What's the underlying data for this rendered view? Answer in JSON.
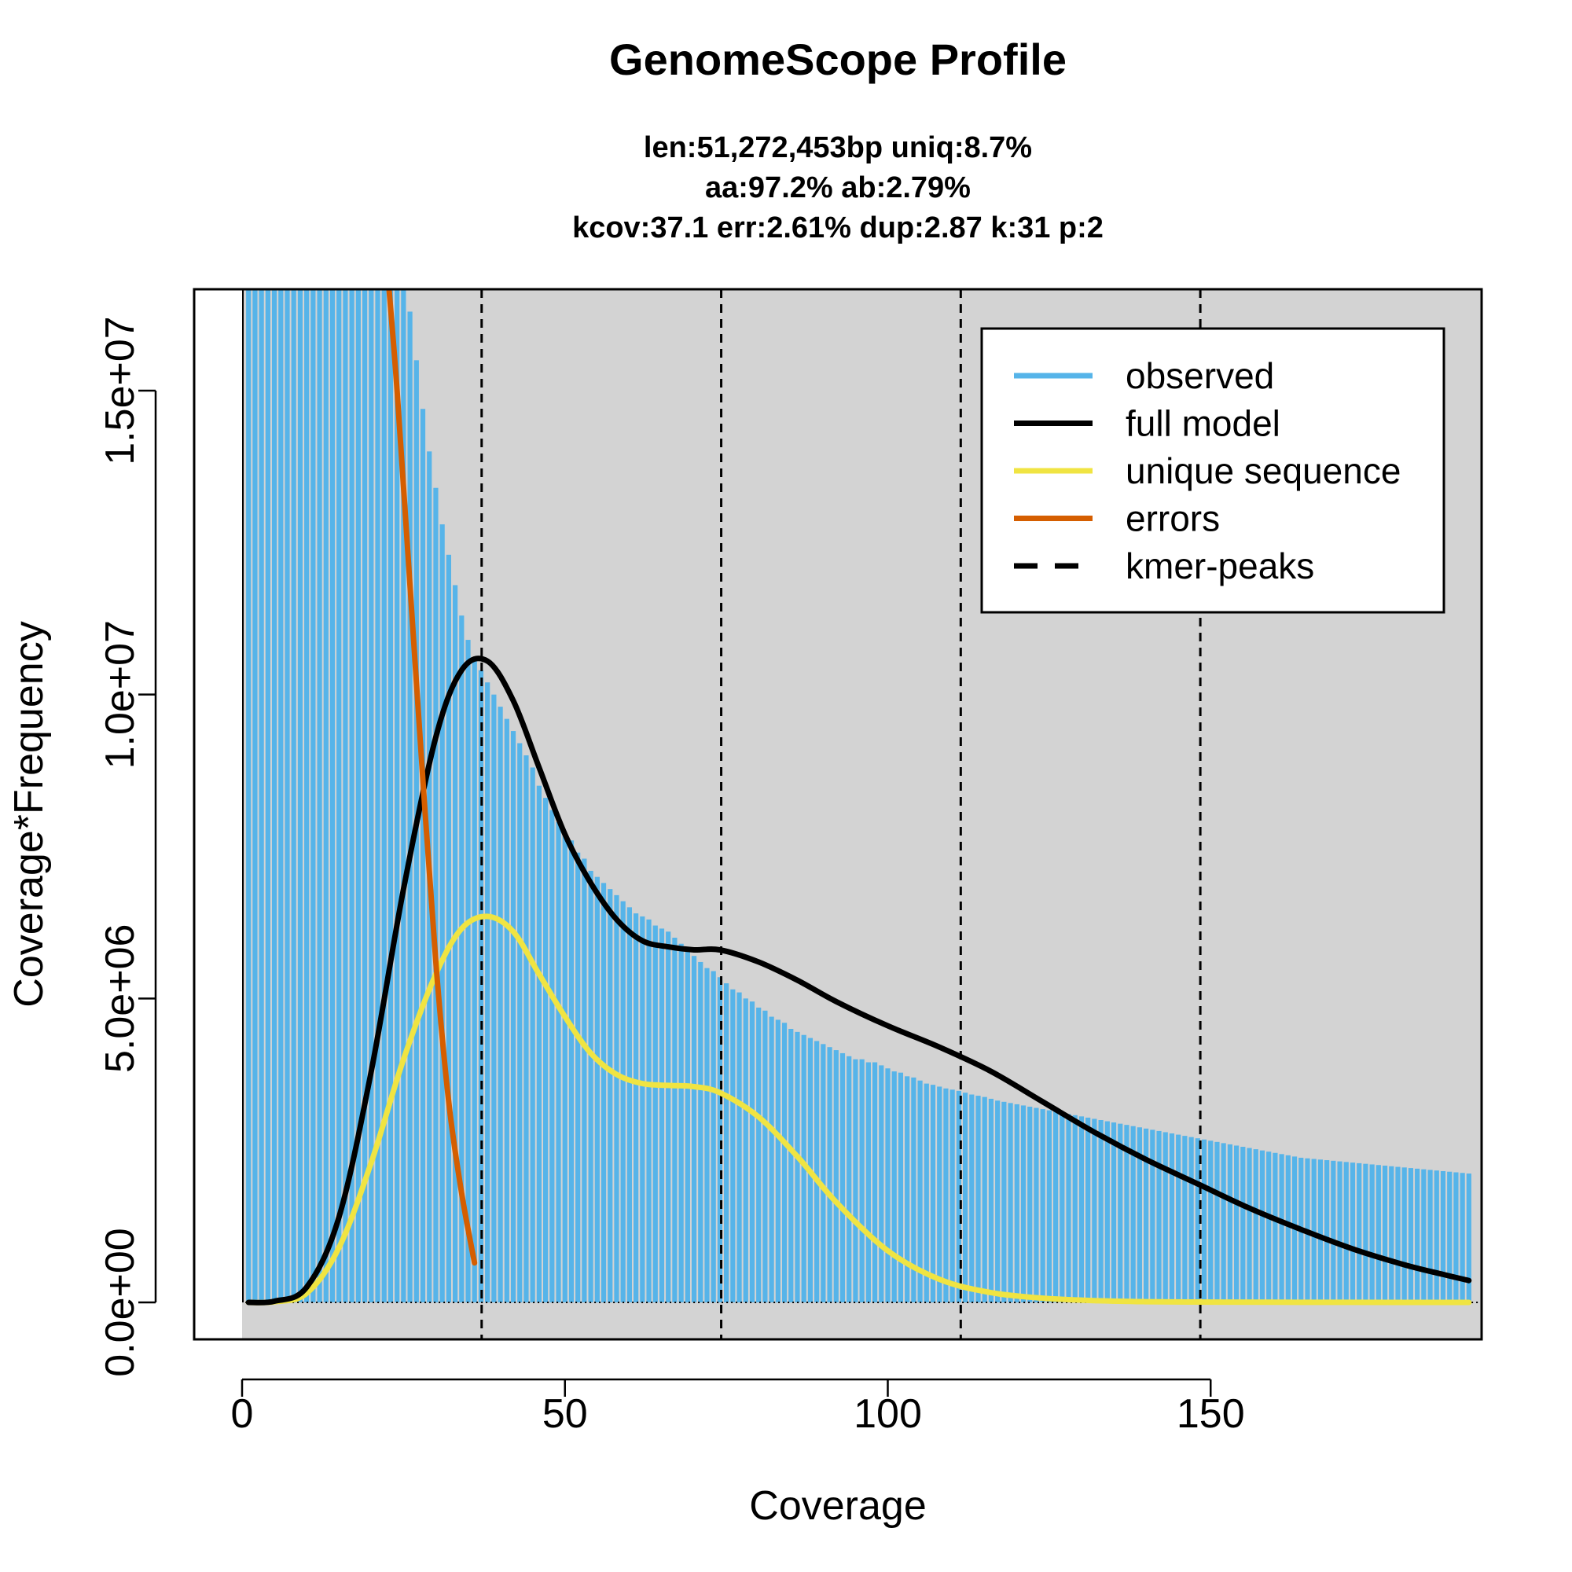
{
  "chart_data": {
    "type": "bar",
    "title": "GenomeScope Profile",
    "subtitle_lines": [
      "len:51,272,453bp uniq:8.7%",
      "aa:97.2% ab:2.79%",
      "kcov:37.1 err:2.61%  dup:2.87  k:31 p:2"
    ],
    "xlabel": "Coverage",
    "ylabel": "Coverage*Frequency",
    "xlim": [
      0,
      190
    ],
    "ylim": [
      0,
      17000000
    ],
    "x_ticks": [
      0,
      50,
      100,
      150
    ],
    "x_tick_labels": [
      "0",
      "50",
      "100",
      "150"
    ],
    "y_ticks": [
      0,
      5000000,
      10000000,
      15000000
    ],
    "y_tick_labels": [
      "0.0e+00",
      "5.0e+06",
      "1.0e+07",
      "1.5e+07"
    ],
    "background_color": "#d3d3d3",
    "legend_position": "top-right",
    "kmer_peaks": [
      37.1,
      74.2,
      111.3,
      148.4
    ],
    "observed": {
      "name": "observed",
      "color": "#56b4e9",
      "x": [
        1,
        2,
        3,
        4,
        5,
        6,
        7,
        8,
        9,
        10,
        11,
        12,
        13,
        14,
        15,
        16,
        17,
        18,
        19,
        20,
        21,
        22,
        23,
        24,
        25,
        26,
        27,
        28,
        29,
        30,
        31,
        32,
        33,
        34,
        35,
        36,
        37,
        38,
        39,
        40,
        41,
        42,
        43,
        44,
        45,
        46,
        47,
        48,
        49,
        50,
        51,
        52,
        53,
        54,
        55,
        56,
        57,
        58,
        59,
        60,
        61,
        62,
        63,
        64,
        65,
        66,
        67,
        68,
        69,
        70,
        71,
        72,
        73,
        74,
        75,
        76,
        77,
        78,
        79,
        80,
        81,
        82,
        83,
        84,
        85,
        86,
        87,
        88,
        89,
        90,
        91,
        92,
        93,
        94,
        95,
        96,
        97,
        98,
        99,
        100,
        101,
        102,
        103,
        104,
        105,
        106,
        107,
        108,
        109,
        110,
        111,
        112,
        113,
        114,
        115,
        116,
        117,
        118,
        119,
        120,
        121,
        122,
        123,
        124,
        125,
        126,
        127,
        128,
        129,
        130,
        131,
        132,
        133,
        134,
        135,
        136,
        137,
        138,
        139,
        140,
        141,
        142,
        143,
        144,
        145,
        146,
        147,
        148,
        149,
        150,
        151,
        152,
        153,
        154,
        155,
        156,
        157,
        158,
        159,
        160,
        161,
        162,
        163,
        164,
        165,
        166,
        167,
        168,
        169,
        170,
        171,
        172,
        173,
        174,
        175,
        176,
        177,
        178,
        179,
        180,
        181,
        182,
        183,
        184,
        185,
        186,
        187,
        188,
        189,
        190
      ],
      "values": [
        17000000,
        17000000,
        17000000,
        17000000,
        17000000,
        17000000,
        17000000,
        17000000,
        17000000,
        17000000,
        17000000,
        17000000,
        17000000,
        17000000,
        17000000,
        17000000,
        17000000,
        17000000,
        17000000,
        17000000,
        17000000,
        17000000,
        17000000,
        17000000,
        17000000,
        16300000,
        15500000,
        14700000,
        14000000,
        13400000,
        12800000,
        12300000,
        11800000,
        11300000,
        10900000,
        10600000,
        10400000,
        10200000,
        10000000,
        9800000,
        9600000,
        9400000,
        9200000,
        9000000,
        8800000,
        8500000,
        8300000,
        8100000,
        7900000,
        7700000,
        7600000,
        7400000,
        7300000,
        7100000,
        7000000,
        6900000,
        6800000,
        6700000,
        6600000,
        6500000,
        6400000,
        6350000,
        6300000,
        6200000,
        6150000,
        6100000,
        6000000,
        5900000,
        5800000,
        5700000,
        5600000,
        5500000,
        5450000,
        5350000,
        5250000,
        5150000,
        5100000,
        5000000,
        4950000,
        4850000,
        4800000,
        4700000,
        4650000,
        4600000,
        4500000,
        4450000,
        4400000,
        4350000,
        4300000,
        4250000,
        4200000,
        4150000,
        4100000,
        4050000,
        4000000,
        4000000,
        3950000,
        3950000,
        3900000,
        3850000,
        3800000,
        3780000,
        3720000,
        3700000,
        3650000,
        3600000,
        3580000,
        3550000,
        3520000,
        3500000,
        3480000,
        3450000,
        3420000,
        3400000,
        3380000,
        3350000,
        3320000,
        3300000,
        3280000,
        3260000,
        3240000,
        3220000,
        3200000,
        3180000,
        3160000,
        3140000,
        3120000,
        3100000,
        3080000,
        3060000,
        3040000,
        3020000,
        3000000,
        2980000,
        2960000,
        2940000,
        2920000,
        2900000,
        2880000,
        2860000,
        2840000,
        2820000,
        2800000,
        2780000,
        2760000,
        2740000,
        2720000,
        2700000,
        2680000,
        2660000,
        2640000,
        2620000,
        2600000,
        2580000,
        2560000,
        2540000,
        2520000,
        2500000,
        2480000,
        2460000,
        2440000,
        2420000,
        2400000,
        2380000,
        2370000,
        2360000,
        2350000,
        2340000,
        2330000,
        2320000,
        2310000,
        2300000,
        2290000,
        2280000,
        2270000,
        2260000,
        2250000,
        2240000,
        2230000,
        2220000,
        2210000,
        2200000,
        2190000,
        2180000,
        2170000,
        2160000,
        2150000,
        2140000,
        2130000,
        2120000
      ]
    },
    "series": [
      {
        "name": "full model",
        "color": "#000000",
        "x": [
          1,
          5,
          10,
          15,
          20,
          25,
          30,
          34,
          38,
          42,
          46,
          50,
          54,
          58,
          62,
          66,
          70,
          74,
          80,
          86,
          92,
          100,
          108,
          116,
          124,
          132,
          140,
          148,
          156,
          164,
          172,
          180,
          186,
          190
        ],
        "values": [
          0,
          20000,
          250000,
          1400000,
          3800000,
          6800000,
          9300000,
          10400000,
          10550000,
          9900000,
          8800000,
          7700000,
          6900000,
          6300000,
          5950000,
          5850000,
          5800000,
          5800000,
          5600000,
          5300000,
          4950000,
          4550000,
          4200000,
          3800000,
          3300000,
          2800000,
          2350000,
          1950000,
          1550000,
          1200000,
          880000,
          620000,
          460000,
          360000
        ]
      },
      {
        "name": "unique sequence",
        "color": "#f0e442",
        "x": [
          1,
          5,
          10,
          15,
          20,
          25,
          30,
          34,
          38,
          42,
          46,
          50,
          54,
          58,
          62,
          66,
          70,
          74,
          80,
          86,
          92,
          100,
          108,
          116,
          124,
          132,
          140,
          150,
          160,
          170,
          180,
          190
        ],
        "values": [
          0,
          10000,
          150000,
          900000,
          2300000,
          4000000,
          5400000,
          6150000,
          6350000,
          6100000,
          5400000,
          4700000,
          4100000,
          3750000,
          3600000,
          3570000,
          3550000,
          3450000,
          3050000,
          2400000,
          1650000,
          850000,
          380000,
          160000,
          70000,
          30000,
          12000,
          5000,
          2000,
          800,
          300,
          100
        ]
      },
      {
        "name": "errors",
        "color": "#d55e00",
        "x": [
          22.5,
          24,
          26,
          28,
          30,
          32,
          34,
          36
        ],
        "values": [
          17000000,
          15000000,
          11800000,
          8600000,
          5600000,
          3300000,
          1800000,
          650000
        ]
      }
    ],
    "legend": [
      {
        "label": "observed",
        "color": "#56b4e9",
        "style": "solid"
      },
      {
        "label": "full model",
        "color": "#000000",
        "style": "solid"
      },
      {
        "label": "unique sequence",
        "color": "#f0e442",
        "style": "solid"
      },
      {
        "label": "errors",
        "color": "#d55e00",
        "style": "solid"
      },
      {
        "label": "kmer-peaks",
        "color": "#000000",
        "style": "dashed"
      }
    ]
  }
}
